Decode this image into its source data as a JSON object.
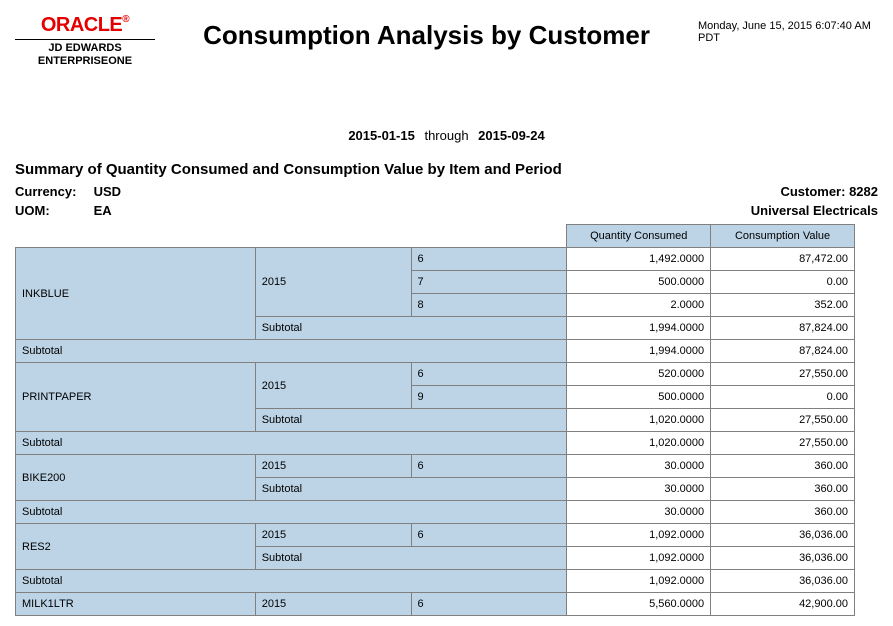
{
  "header": {
    "logo_text": "ORACLE",
    "logo_sub1": "JD EDWARDS",
    "logo_sub2": "ENTERPRISEONE",
    "title": "Consumption Analysis by Customer",
    "timestamp": "Monday, June 15, 2015 6:07:40 AM PDT"
  },
  "range": {
    "from": "2015-01-15",
    "through_label": "through",
    "to": "2015-09-24"
  },
  "summary_title": "Summary of Quantity Consumed and Consumption Value by Item and Period",
  "meta": {
    "currency_label": "Currency:",
    "currency_value": "USD",
    "uom_label": "UOM:",
    "uom_value": "EA",
    "customer_label": "Customer:",
    "customer_value": "8282",
    "customer_name": "Universal Electricals"
  },
  "columns": {
    "qty": "Quantity Consumed",
    "val": "Consumption Value"
  },
  "labels": {
    "subtotal": "Subtotal"
  },
  "items": [
    {
      "name": "INKBLUE",
      "year": "2015",
      "periods": [
        {
          "p": "6",
          "qty": "1,492.0000",
          "val": "87,472.00"
        },
        {
          "p": "7",
          "qty": "500.0000",
          "val": "0.00"
        },
        {
          "p": "8",
          "qty": "2.0000",
          "val": "352.00"
        }
      ],
      "year_subtotal": {
        "qty": "1,994.0000",
        "val": "87,824.00"
      },
      "item_subtotal": {
        "qty": "1,994.0000",
        "val": "87,824.00"
      }
    },
    {
      "name": "PRINTPAPER",
      "year": "2015",
      "periods": [
        {
          "p": "6",
          "qty": "520.0000",
          "val": "27,550.00"
        },
        {
          "p": "9",
          "qty": "500.0000",
          "val": "0.00"
        }
      ],
      "year_subtotal": {
        "qty": "1,020.0000",
        "val": "27,550.00"
      },
      "item_subtotal": {
        "qty": "1,020.0000",
        "val": "27,550.00"
      }
    },
    {
      "name": "BIKE200",
      "year": "2015",
      "periods": [
        {
          "p": "6",
          "qty": "30.0000",
          "val": "360.00"
        }
      ],
      "year_subtotal": {
        "qty": "30.0000",
        "val": "360.00"
      },
      "item_subtotal": {
        "qty": "30.0000",
        "val": "360.00"
      }
    },
    {
      "name": "RES2",
      "year": "2015",
      "periods": [
        {
          "p": "6",
          "qty": "1,092.0000",
          "val": "36,036.00"
        }
      ],
      "year_subtotal": {
        "qty": "1,092.0000",
        "val": "36,036.00"
      },
      "item_subtotal": {
        "qty": "1,092.0000",
        "val": "36,036.00"
      }
    },
    {
      "name": "MILK1LTR",
      "year": "2015",
      "periods": [
        {
          "p": "6",
          "qty": "5,560.0000",
          "val": "42,900.00"
        }
      ]
    }
  ],
  "style": {
    "shade_color": "#bcd4e6",
    "border_color": "#808080",
    "oracle_red": "#e40000"
  }
}
